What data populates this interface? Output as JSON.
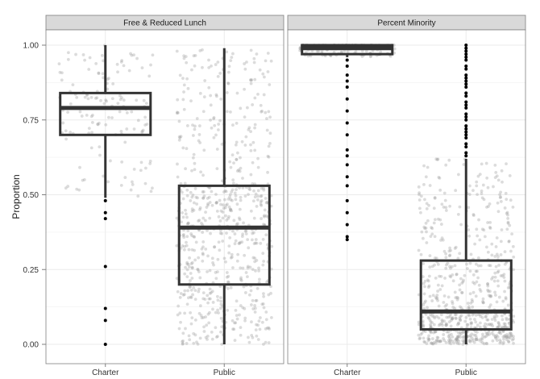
{
  "chart_data": {
    "type": "boxplot",
    "ylabel": "Proportion",
    "xlabel": "",
    "ylim": [
      0,
      1
    ],
    "y_ticks": [
      "0.00",
      "0.25",
      "0.50",
      "0.75",
      "1.00"
    ],
    "categories": [
      "Charter",
      "Public"
    ],
    "grid": true,
    "jitter_points_shown": true,
    "colors": {
      "box_line": "#333333",
      "points": "#9a9a9a",
      "outliers": "#000000",
      "strip_bg": "#d9d9d9",
      "panel_border": "#7f7f7f",
      "grid": "#ebebeb"
    },
    "panels": [
      {
        "strip": "Free & Reduced Lunch",
        "boxes": [
          {
            "category": "Charter",
            "lower_whisker": 0.49,
            "q1": 0.7,
            "median": 0.79,
            "q3": 0.84,
            "upper_whisker": 1.0,
            "outliers": [
              0.48,
              0.44,
              0.42,
              0.26,
              0.12,
              0.08,
              0.0
            ]
          },
          {
            "category": "Public",
            "lower_whisker": 0.0,
            "q1": 0.2,
            "median": 0.39,
            "q3": 0.53,
            "upper_whisker": 0.99,
            "outliers": []
          }
        ]
      },
      {
        "strip": "Percent Minority",
        "boxes": [
          {
            "category": "Charter",
            "lower_whisker": 0.96,
            "q1": 0.97,
            "median": 0.99,
            "q3": 1.0,
            "upper_whisker": 1.0,
            "outliers": [
              0.95,
              0.93,
              0.9,
              0.88,
              0.86,
              0.82,
              0.78,
              0.74,
              0.7,
              0.65,
              0.63,
              0.6,
              0.56,
              0.53,
              0.48,
              0.44,
              0.4,
              0.36,
              0.35
            ]
          },
          {
            "category": "Public",
            "lower_whisker": 0.0,
            "q1": 0.05,
            "median": 0.11,
            "q3": 0.28,
            "upper_whisker": 0.62,
            "outliers": [
              0.63,
              0.64,
              0.66,
              0.67,
              0.69,
              0.7,
              0.71,
              0.72,
              0.73,
              0.75,
              0.76,
              0.77,
              0.79,
              0.8,
              0.81,
              0.83,
              0.84,
              0.86,
              0.87,
              0.88,
              0.89,
              0.9,
              0.92,
              0.93,
              0.95,
              0.96,
              0.97,
              0.98,
              0.99,
              1.0
            ]
          }
        ]
      }
    ]
  }
}
